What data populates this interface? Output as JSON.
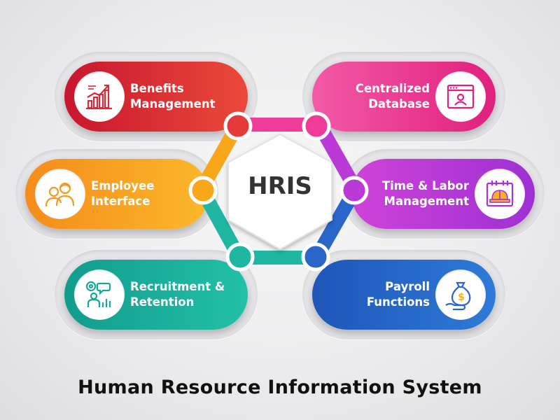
{
  "diagram": {
    "center_title": "HRIS",
    "caption": "Human Resource Information System",
    "colors": {
      "benefits": "#e43a3a",
      "centralized": "#ee3c98",
      "employee": "#f8a71b",
      "time_labor": "#b93ad6",
      "recruitment": "#1fb7a2",
      "payroll": "#2a66c9"
    },
    "nodes": [
      {
        "id": "benefits",
        "line1": "Benefits",
        "line2": "Management",
        "icon": "growth-chart-icon",
        "side": "left"
      },
      {
        "id": "centralized",
        "line1": "Centralized",
        "line2": "Database",
        "icon": "database-profile-icon",
        "side": "right"
      },
      {
        "id": "employee",
        "line1": "Employee",
        "line2": "Interface",
        "icon": "employees-icon",
        "side": "left"
      },
      {
        "id": "time_labor",
        "line1": "Time & Labor",
        "line2": "Management",
        "icon": "calendar-helmet-icon",
        "side": "right"
      },
      {
        "id": "recruitment",
        "line1": "Recruitment &",
        "line2": "Retention",
        "icon": "recruitment-icon",
        "side": "left"
      },
      {
        "id": "payroll",
        "line1": "Payroll",
        "line2": "Functions",
        "icon": "money-bag-icon",
        "side": "right"
      }
    ]
  }
}
